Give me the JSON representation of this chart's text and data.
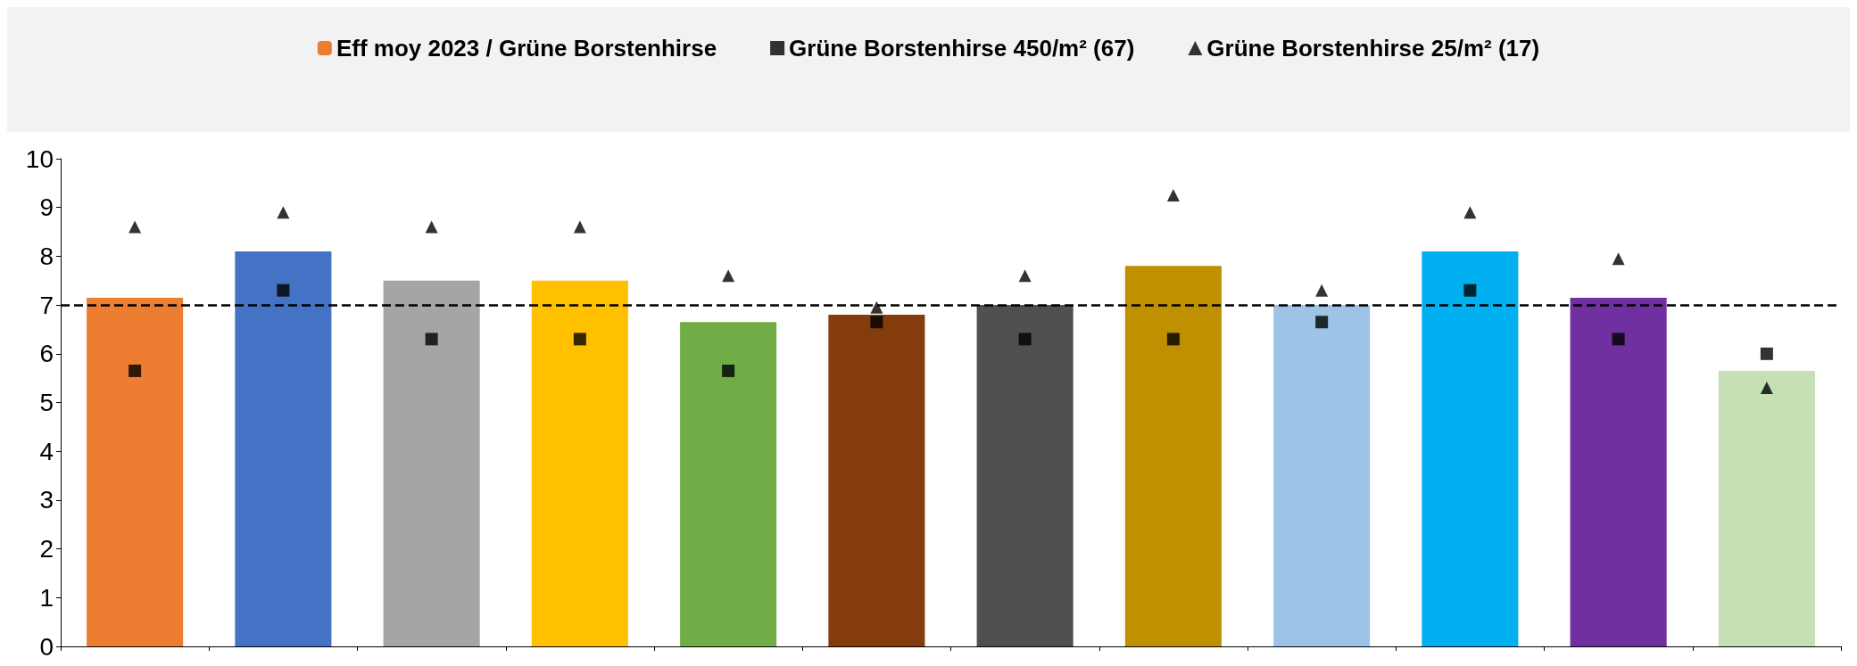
{
  "chart_data": {
    "type": "bar",
    "categories": [
      null,
      null,
      null,
      null,
      null,
      null,
      null,
      null,
      null,
      null,
      null,
      null
    ],
    "series": [
      {
        "name": "Eff moy 2023 / Grüne Borstenhirse",
        "color": "#ed7d31",
        "colors": [
          "#ed7d31",
          "#4472c4",
          "#a5a5a5",
          "#ffc000",
          "#70ad47",
          "#843c0c",
          "#505050",
          "#bf9000",
          "#9dc3e6",
          "#00b0f0",
          "#7030a0",
          "#c5e0b4"
        ],
        "values": [
          7.15,
          8.1,
          7.5,
          7.5,
          6.65,
          6.8,
          7.0,
          7.8,
          7.0,
          8.1,
          7.15,
          5.65
        ]
      },
      {
        "name": "Grüne Borstenhirse 450/m² (67)",
        "type": "scatter",
        "marker": "square",
        "color": "#000000",
        "values": [
          5.65,
          7.3,
          6.3,
          6.3,
          5.65,
          6.65,
          6.3,
          6.3,
          6.65,
          7.3,
          6.3,
          6.0
        ]
      },
      {
        "name": "Grüne Borstenhirse 25/m² (17)",
        "type": "scatter",
        "marker": "triangle",
        "color": "#000000",
        "values": [
          8.6,
          8.9,
          8.6,
          8.6,
          7.6,
          6.95,
          7.6,
          9.25,
          7.3,
          8.9,
          7.95,
          5.3
        ]
      }
    ],
    "ylim": [
      0,
      10
    ],
    "yticks": [
      0,
      1,
      2,
      3,
      4,
      5,
      6,
      7,
      8,
      9,
      10
    ],
    "ref_lines": [
      {
        "axis": "y",
        "value": 7,
        "color": "#000000",
        "line_style": "dashed"
      }
    ],
    "grid": false,
    "legend": "top"
  }
}
